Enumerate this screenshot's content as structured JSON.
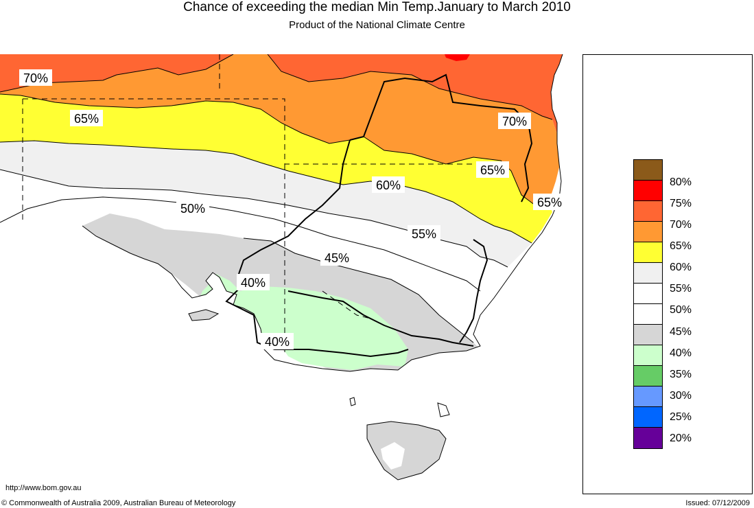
{
  "title": "Chance of exceeding the median Min Temp.January to March 2010",
  "subtitle": "Product of the National Climate Centre",
  "map_labels": [
    "70%",
    "65%",
    "70%",
    "65%",
    "65%",
    "60%",
    "50%",
    "55%",
    "45%",
    "40%",
    "40%"
  ],
  "legend": {
    "items": [
      {
        "label": "80%",
        "color": "#8b5a1a"
      },
      {
        "label": "75%",
        "color": "#ff0000"
      },
      {
        "label": "70%",
        "color": "#ff6633"
      },
      {
        "label": "65%",
        "color": "#ff9933"
      },
      {
        "label": "60%",
        "color": "#ffff33"
      },
      {
        "label": "55%",
        "color": "#f0f0f0"
      },
      {
        "label": "50%",
        "color": "#ffffff"
      },
      {
        "label": "45%",
        "color": "#ffffff"
      },
      {
        "label": "40%",
        "color": "#d6d6d6"
      },
      {
        "label": "35%",
        "color": "#ccffcc"
      },
      {
        "label": "30%",
        "color": "#66cc66"
      },
      {
        "label": "25%",
        "color": "#6699ff"
      },
      {
        "label": "20%",
        "color": "#0066ff"
      },
      {
        "label": "",
        "color": "#660099"
      }
    ]
  },
  "footer": {
    "url": "http://www.bom.gov.au",
    "copyright": "© Commonwealth of Australia 2009, Australian Bureau of Meteorology",
    "issued": "Issued: 07/12/2009"
  }
}
